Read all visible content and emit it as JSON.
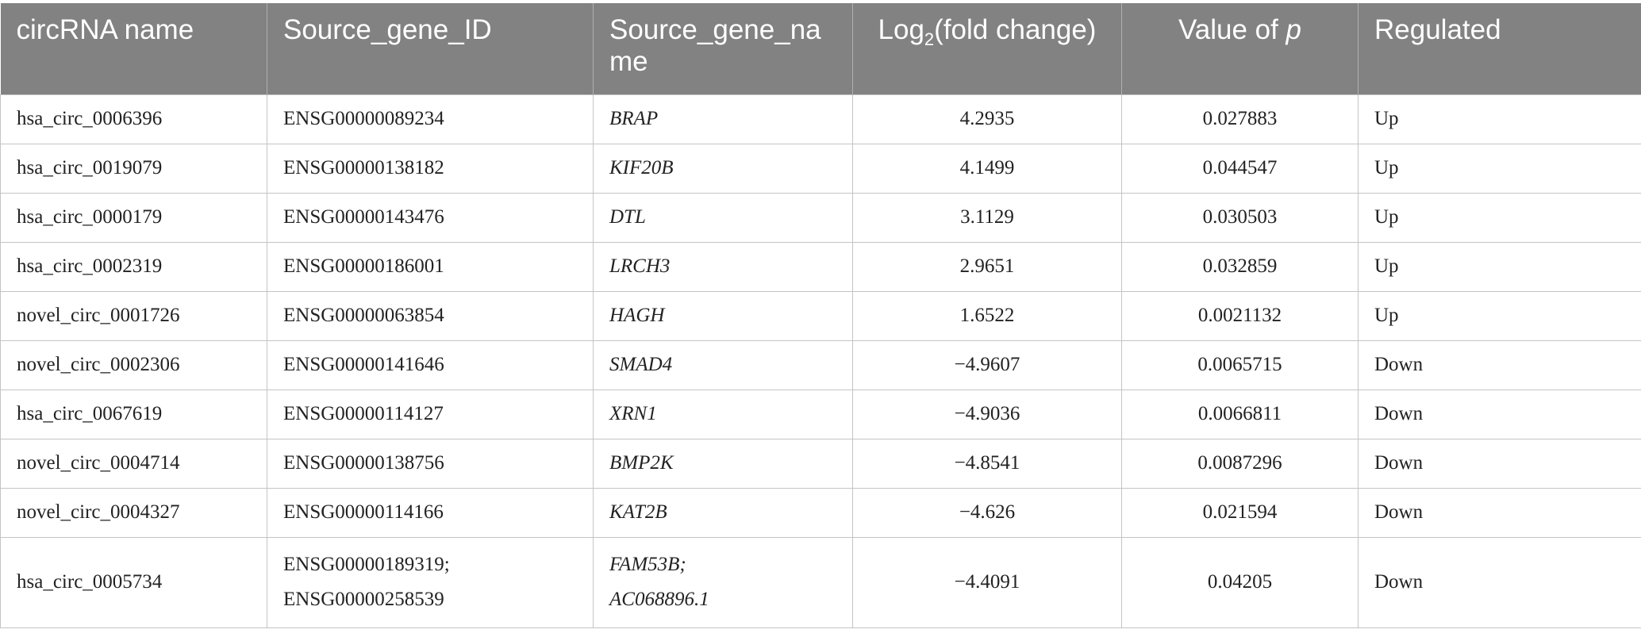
{
  "table": {
    "header": [
      "circRNA name",
      "Source_gene_ID",
      "Source_gene_name",
      {
        "text": "Log",
        "subscript": "2",
        "after": "(fold change)"
      },
      {
        "text": "Value of ",
        "italic": "p"
      },
      "Regulated"
    ],
    "rows": [
      [
        "hsa_circ_0006396",
        "ENSG00000089234",
        "BRAP",
        "4.2935",
        "0.027883",
        "Up"
      ],
      [
        "hsa_circ_0019079",
        "ENSG00000138182",
        "KIF20B",
        "4.1499",
        "0.044547",
        "Up"
      ],
      [
        "hsa_circ_0000179",
        "ENSG00000143476",
        "DTL",
        "3.1129",
        "0.030503",
        "Up"
      ],
      [
        "hsa_circ_0002319",
        "ENSG00000186001",
        "LRCH3",
        "2.9651",
        "0.032859",
        "Up"
      ],
      [
        "novel_circ_0001726",
        "ENSG00000063854",
        "HAGH",
        "1.6522",
        "0.0021132",
        "Up"
      ],
      [
        "novel_circ_0002306",
        "ENSG00000141646",
        "SMAD4",
        "−4.9607",
        "0.0065715",
        "Down"
      ],
      [
        "hsa_circ_0067619",
        "ENSG00000114127",
        "XRN1",
        "−4.9036",
        "0.0066811",
        "Down"
      ],
      [
        "novel_circ_0004714",
        "ENSG00000138756",
        "BMP2K",
        "−4.8541",
        "0.0087296",
        "Down"
      ],
      [
        "novel_circ_0004327",
        "ENSG00000114166",
        "KAT2B",
        "−4.626",
        "0.021594",
        "Down"
      ],
      [
        "hsa_circ_0005734",
        [
          "ENSG00000189319;",
          "ENSG00000258539"
        ],
        [
          "FAM53B;",
          "AC068896.1"
        ],
        "−4.4091",
        "0.04205",
        "Down"
      ]
    ]
  }
}
